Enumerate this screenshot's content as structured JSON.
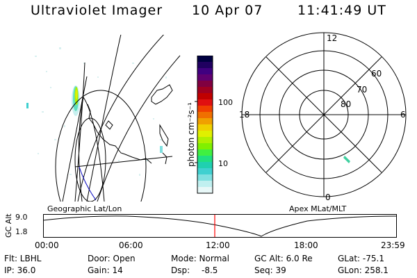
{
  "header": {
    "instrument": "Ultraviolet Imager",
    "date": "10 Apr 07",
    "time": "11:41:49 UT"
  },
  "geo_panel": {
    "label": "Geographic Lat/Lon"
  },
  "colorbar": {
    "unit_label": "photon cm⁻²s⁻¹",
    "ticks": [
      "100",
      "10"
    ],
    "colors": [
      "#000040",
      "#200060",
      "#400080",
      "#600070",
      "#800040",
      "#a00020",
      "#c00000",
      "#e01010",
      "#f04000",
      "#f07000",
      "#f0a000",
      "#f0d000",
      "#e0f000",
      "#b0f000",
      "#80f000",
      "#40f040",
      "#20e080",
      "#20d0b0",
      "#40d0d0",
      "#80e0e0",
      "#c0f0f0",
      "#e8f8f8"
    ]
  },
  "polar_plot": {
    "label": "Apex MLat/MLT",
    "mlt_labels": {
      "top": "12",
      "left": "18",
      "right": "6",
      "bottom": "0"
    },
    "lat_labels": [
      "60",
      "70",
      "80"
    ]
  },
  "altitude_plot": {
    "axis_label": "GC Alt",
    "y_ticks": [
      "9.0",
      "1.8"
    ],
    "x_ticks": [
      "00:00",
      "06:00",
      "12:00",
      "18:00",
      "23:59"
    ],
    "marker_color": "#ff0000"
  },
  "info": {
    "flt": "Flt: LBHL",
    "ip": "IP: 36.0",
    "door": "Door: Open",
    "gain": "Gain: 14",
    "mode": "Mode: Normal",
    "dsp_label": "Dsp:",
    "dsp_value": "-8.5",
    "gc_alt": "GC Alt: 6.0 Re",
    "seq": "Seq: 39",
    "glat": "GLat: -75.1",
    "glon": "GLon: 258.1"
  }
}
